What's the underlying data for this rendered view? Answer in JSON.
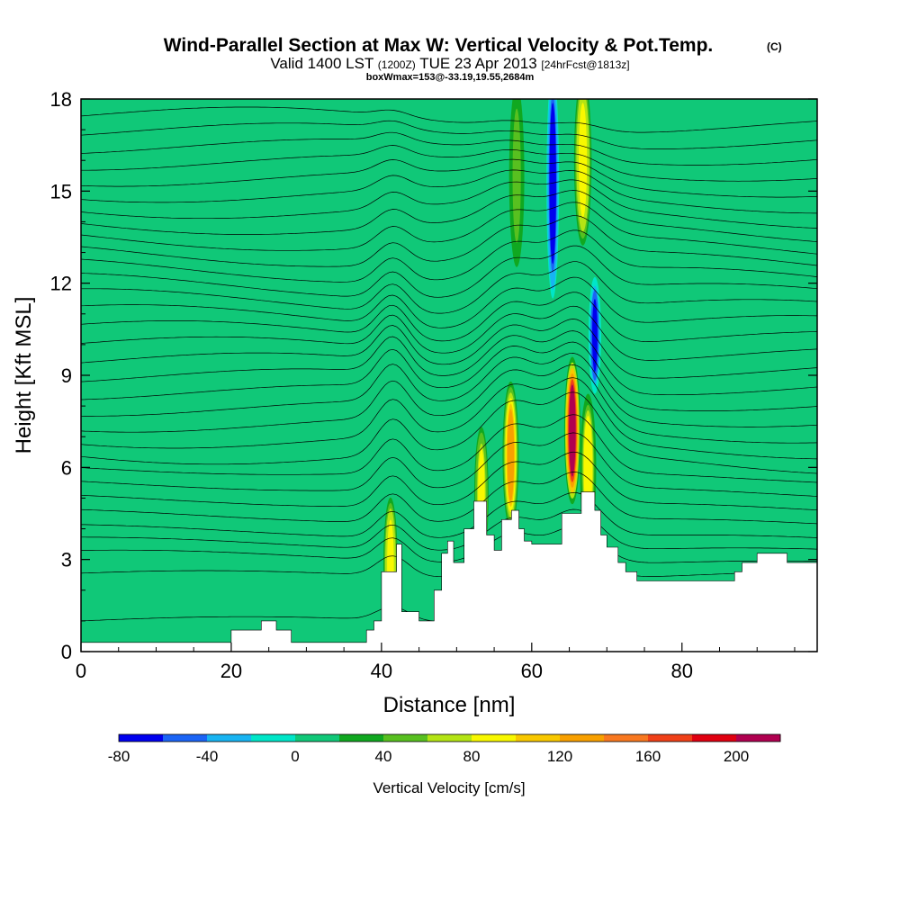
{
  "chart_data": {
    "type": "heatmap",
    "title": "Wind-Parallel Section at Max W: Vertical Velocity & Pot.Temp.",
    "title_mark": "(C)",
    "subtitle_main": "Valid 1400 LST",
    "subtitle_utc": "(1200Z)",
    "subtitle_date": "TUE 23 Apr 2013",
    "subtitle_fcst": "[24hrFcst@1813z]",
    "subtitle_box": "boxWmax=153@-33.19,19.55,2684m",
    "xlabel": "Distance [nm]",
    "ylabel": "Height [Kft MSL]",
    "xlim": [
      0,
      98
    ],
    "ylim": [
      0,
      18
    ],
    "xticks": [
      0,
      20,
      40,
      60,
      80
    ],
    "yticks": [
      0,
      3,
      6,
      9,
      12,
      15,
      18
    ],
    "colorbar": {
      "label": "Vertical Velocity [cm/s]",
      "levels": [
        -80,
        -60,
        -40,
        -20,
        0,
        20,
        40,
        60,
        80,
        100,
        120,
        140,
        160,
        180,
        200,
        220
      ],
      "tick_values": [
        -80,
        -40,
        0,
        40,
        80,
        120,
        160,
        200
      ],
      "colors": [
        "#0000ee",
        "#1b64f5",
        "#18b4f2",
        "#00e6c8",
        "#10c878",
        "#10a820",
        "#58c020",
        "#b4e414",
        "#f8f800",
        "#f8c800",
        "#f8a000",
        "#f87820",
        "#f04018",
        "#e00010",
        "#b00050"
      ]
    },
    "background_w_cms": 5,
    "updrafts": [
      {
        "x_nm": 41.2,
        "top_kft": 5.2,
        "w_cms": 90
      },
      {
        "x_nm": 53.3,
        "top_kft": 7.5,
        "w_cms": 85
      },
      {
        "x_nm": 57.2,
        "top_kft": 8.8,
        "w_cms": 130
      },
      {
        "x_nm": 65.4,
        "top_kft": 9.6,
        "w_cms": 205
      },
      {
        "x_nm": 67.5,
        "top_kft": 8.4,
        "w_cms": 95
      }
    ],
    "upper_level_cells": [
      {
        "x_nm": 62.8,
        "bottom_kft": 11.5,
        "top_kft": 18,
        "w_cms": -80
      },
      {
        "x_nm": 68.4,
        "bottom_kft": 8.4,
        "top_kft": 11.2,
        "w_cms": -70
      },
      {
        "x_nm": 66.8,
        "bottom_kft": 13.0,
        "top_kft": 18,
        "w_cms": 90
      },
      {
        "x_nm": 58.0,
        "bottom_kft": 12.0,
        "top_kft": 18,
        "w_cms": 45
      }
    ],
    "terrain_kft": [
      [
        0,
        0.3
      ],
      [
        20,
        0.3
      ],
      [
        20,
        0.7
      ],
      [
        24,
        0.7
      ],
      [
        24,
        1.0
      ],
      [
        26,
        1.0
      ],
      [
        26,
        0.7
      ],
      [
        28,
        0.7
      ],
      [
        28,
        0.3
      ],
      [
        38,
        0.3
      ],
      [
        38,
        0.7
      ],
      [
        39,
        0.7
      ],
      [
        39,
        1.0
      ],
      [
        40,
        1.0
      ],
      [
        40,
        2.6
      ],
      [
        42,
        2.6
      ],
      [
        42,
        3.5
      ],
      [
        42.7,
        3.5
      ],
      [
        42.7,
        1.3
      ],
      [
        45,
        1.3
      ],
      [
        45,
        1.0
      ],
      [
        47,
        1.0
      ],
      [
        47,
        2.0
      ],
      [
        48,
        2.0
      ],
      [
        48,
        3.2
      ],
      [
        48.8,
        3.2
      ],
      [
        48.8,
        3.6
      ],
      [
        49.6,
        3.6
      ],
      [
        49.6,
        2.9
      ],
      [
        51,
        2.9
      ],
      [
        51,
        4.0
      ],
      [
        52.3,
        4.0
      ],
      [
        52.3,
        4.9
      ],
      [
        54,
        4.9
      ],
      [
        54,
        3.8
      ],
      [
        55,
        3.8
      ],
      [
        55,
        3.3
      ],
      [
        56,
        3.3
      ],
      [
        56,
        4.3
      ],
      [
        57.3,
        4.3
      ],
      [
        57.3,
        4.6
      ],
      [
        58.3,
        4.6
      ],
      [
        58.3,
        4.0
      ],
      [
        59,
        4.0
      ],
      [
        59,
        3.6
      ],
      [
        60,
        3.6
      ],
      [
        60,
        3.5
      ],
      [
        64,
        3.5
      ],
      [
        64,
        4.5
      ],
      [
        66.6,
        4.5
      ],
      [
        66.6,
        5.2
      ],
      [
        68.4,
        5.2
      ],
      [
        68.4,
        4.6
      ],
      [
        69.2,
        4.6
      ],
      [
        69.2,
        3.8
      ],
      [
        70,
        3.8
      ],
      [
        70,
        3.4
      ],
      [
        71.5,
        3.4
      ],
      [
        71.5,
        2.9
      ],
      [
        72.5,
        2.9
      ],
      [
        72.5,
        2.6
      ],
      [
        74,
        2.6
      ],
      [
        74,
        2.3
      ],
      [
        87,
        2.3
      ],
      [
        87,
        2.6
      ],
      [
        88,
        2.6
      ],
      [
        88,
        2.9
      ],
      [
        90,
        2.9
      ],
      [
        90,
        3.2
      ],
      [
        94,
        3.2
      ],
      [
        94,
        2.9
      ],
      [
        98,
        2.9
      ]
    ],
    "isentrope_levels_kft": [
      1.0,
      2.5,
      3.2,
      3.6,
      4.0,
      4.5,
      5.0,
      5.5,
      6.0,
      6.5,
      7.0,
      7.5,
      8.0,
      8.5,
      9.0,
      9.5,
      10.0,
      10.5,
      11.0,
      11.5,
      12.0,
      12.5,
      13.0,
      13.5,
      14.0,
      14.5,
      15.0,
      15.5,
      16.0,
      16.5,
      17.0,
      17.5
    ]
  }
}
